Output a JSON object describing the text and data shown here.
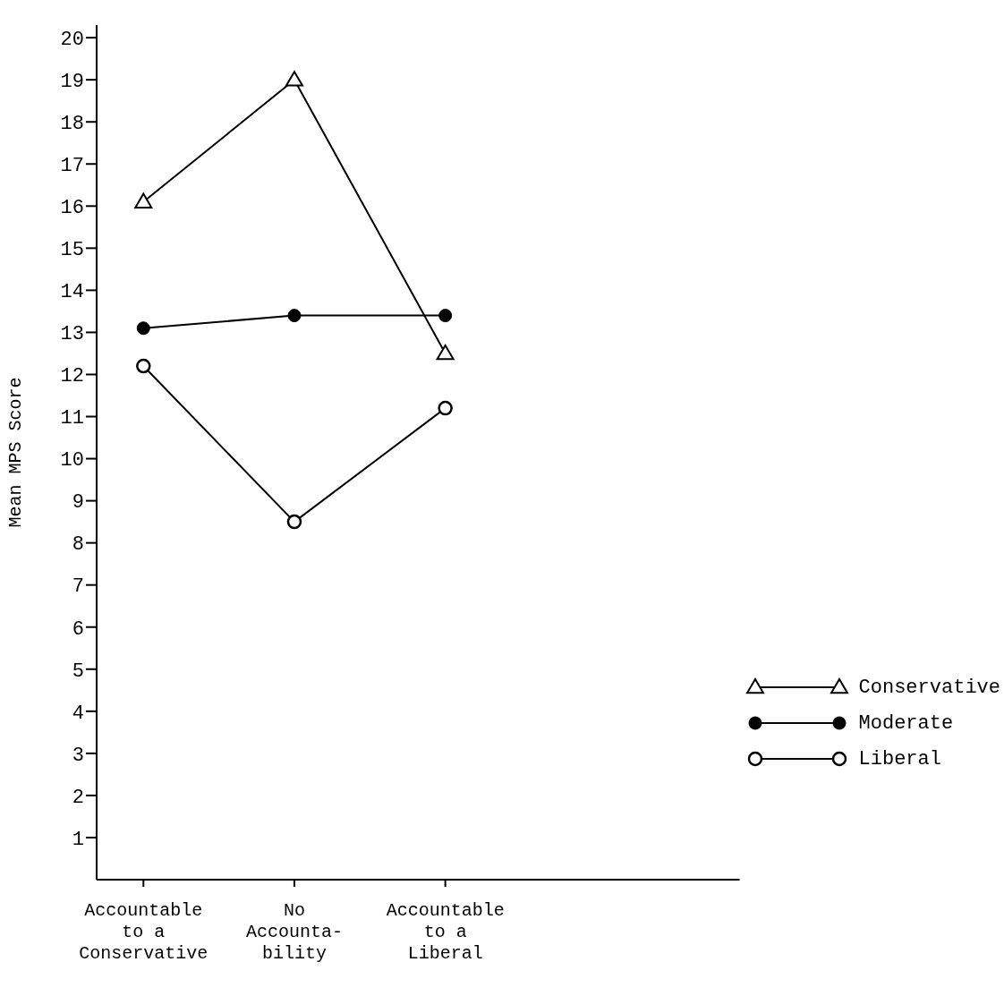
{
  "chart_data": {
    "type": "line",
    "ylabel": "Mean MPS Score",
    "categories": [
      "Accountable\nto a\nConservative",
      "No\nAccounta-\nbility",
      "Accountable\nto a\nLiberal"
    ],
    "series": [
      {
        "name": "Conservative",
        "color": "#000000",
        "marker": "triangle",
        "values": [
          16.1,
          19.0,
          12.5
        ]
      },
      {
        "name": "Moderate",
        "color": "#000000",
        "marker": "circle",
        "values": [
          13.1,
          13.4,
          13.4
        ]
      },
      {
        "name": "Liberal",
        "color": "#000000",
        "marker": "open circle",
        "values": [
          12.2,
          8.5,
          11.2
        ]
      }
    ],
    "ylim": [
      0,
      20.3
    ],
    "yticks": [
      1,
      2,
      3,
      4,
      5,
      6,
      7,
      8,
      9,
      10,
      11,
      12,
      13,
      14,
      15,
      16,
      17,
      18,
      19,
      20
    ],
    "grid": false,
    "legend": "bottom right"
  }
}
